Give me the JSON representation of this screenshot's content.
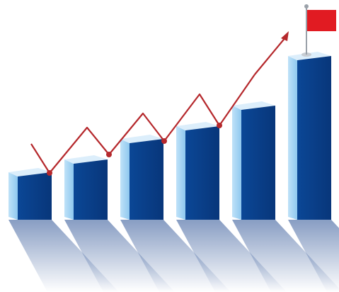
{
  "graphic": {
    "kind": "rising 3D bar illustration with trend arrow and flag",
    "bars": [
      {
        "level": 0.3
      },
      {
        "level": 0.38
      },
      {
        "level": 0.5
      },
      {
        "level": 0.58
      },
      {
        "level": 0.7
      },
      {
        "level": 1.0
      }
    ],
    "trend_line": {
      "levels": [
        0.68,
        0.42,
        0.82,
        0.58,
        0.95,
        0.7,
        1.12,
        0.84,
        1.3
      ],
      "has_arrowhead": true
    },
    "flag": {
      "present": true
    }
  },
  "colors": {
    "background": "#ffffff",
    "bar_front": "#0b4796",
    "bar_front_dark": "#08367a",
    "bar_side": "#8fc8ef",
    "bar_top": "#dceefb",
    "shadow": "#264d92",
    "trend_line": "#b5282c",
    "flag": "#e11b22",
    "pole": "#9aa1a9"
  },
  "icons": [
    "bar-chart-illustration",
    "trend-arrow-icon",
    "flag-icon"
  ]
}
